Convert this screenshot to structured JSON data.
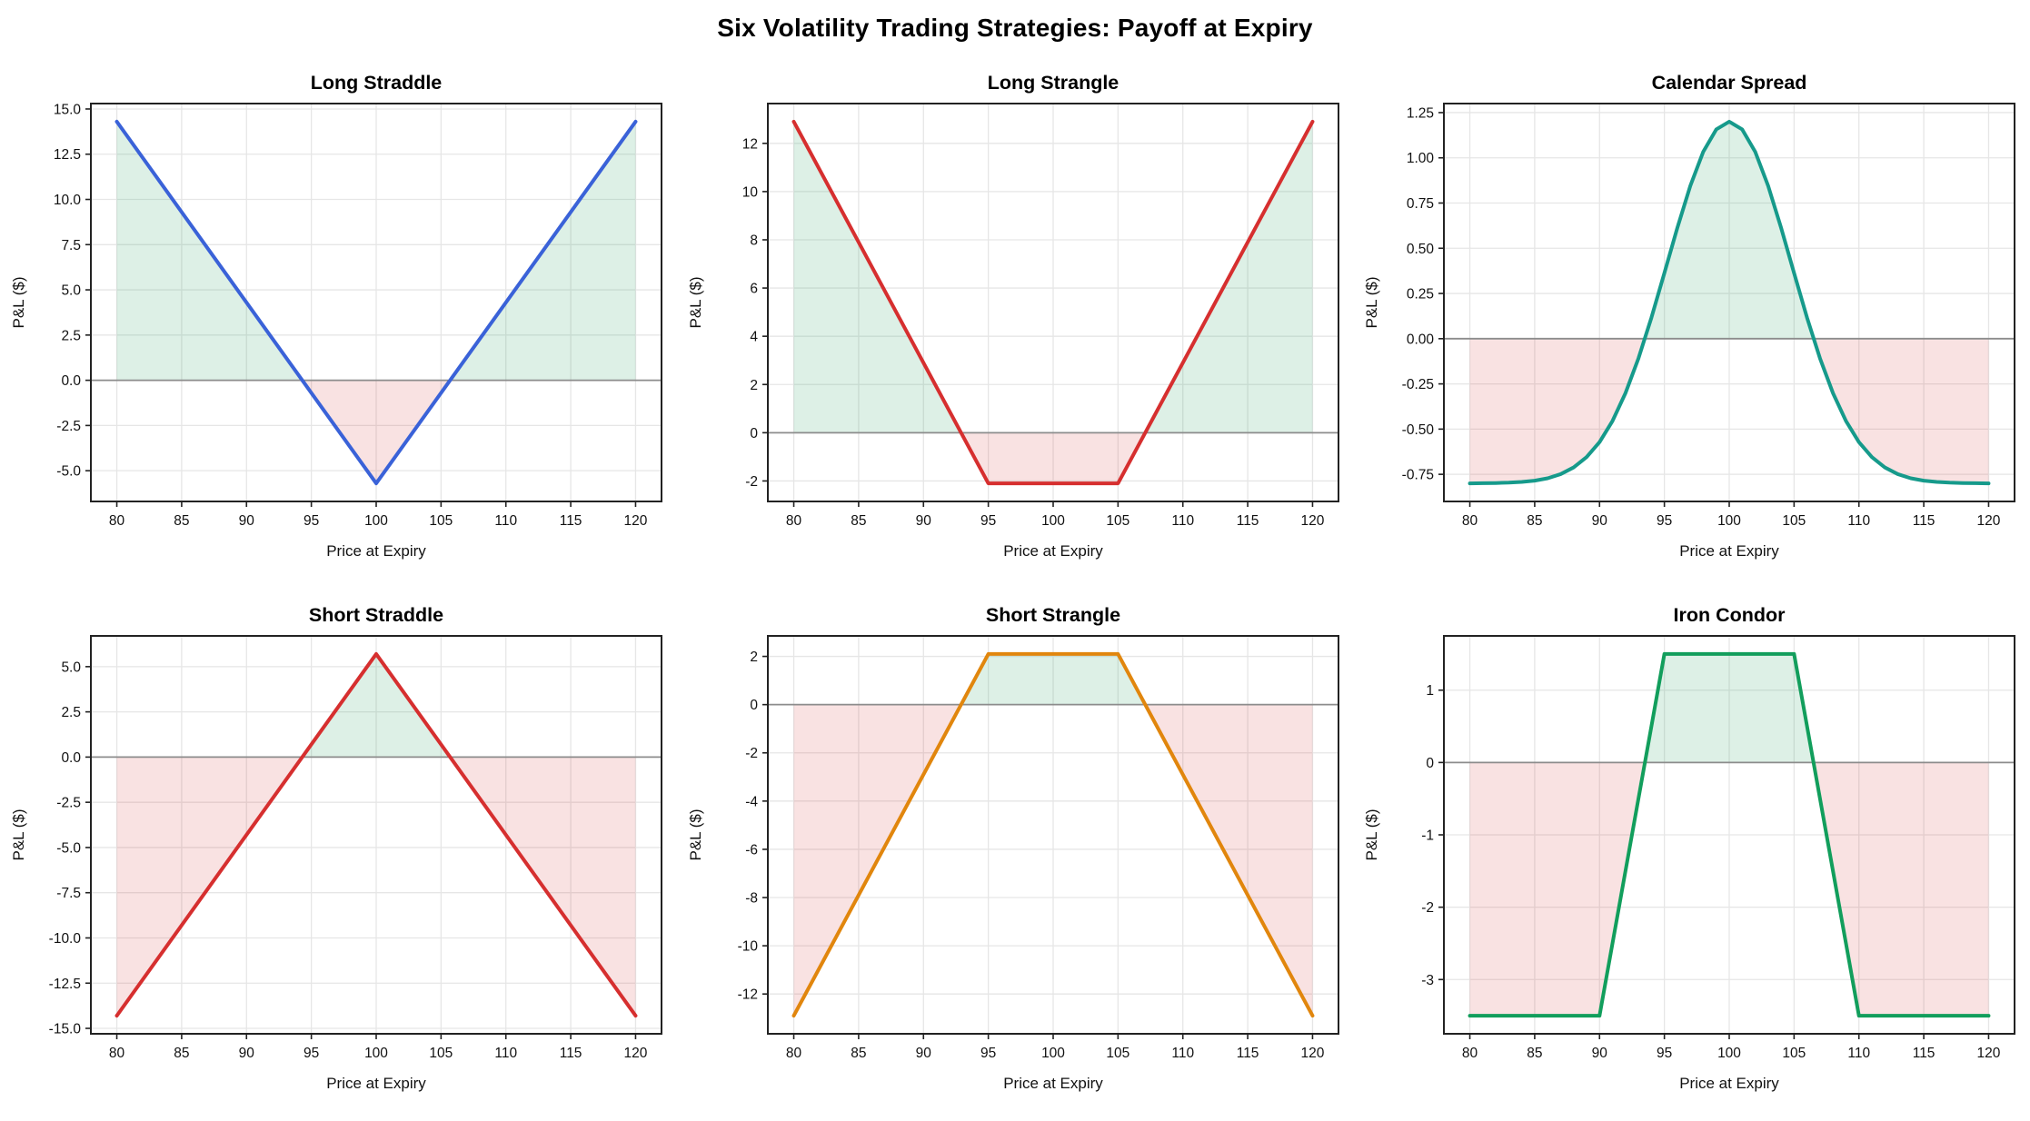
{
  "figure": {
    "title": "Six Volatility Trading Strategies: Payoff at Expiry",
    "background": "#ffffff",
    "profit_fill": "rgba(44,160,101,0.16)",
    "loss_fill": "rgba(214,47,47,0.14)",
    "grid_color": "#e6e6e6",
    "zero_line_color": "#8c8c8c",
    "spine_color": "#222222",
    "tick_color": "#222222"
  },
  "chart_data": [
    {
      "type": "line",
      "title": "Long Straddle",
      "xlabel": "Price at Expiry",
      "ylabel": "P&L ($)",
      "line_color": "#3a62d8",
      "x": [
        80,
        100,
        120
      ],
      "y": [
        14.3,
        -5.7,
        14.3
      ],
      "xlim": [
        78,
        122
      ],
      "ylim": [
        -6.7,
        15.3
      ],
      "xticks": [
        80,
        85,
        90,
        95,
        100,
        105,
        110,
        115,
        120
      ],
      "xtick_labels": [
        "80",
        "85",
        "90",
        "95",
        "100",
        "105",
        "110",
        "115",
        "120"
      ],
      "yticks": [
        -5,
        -2.5,
        0,
        2.5,
        5,
        7.5,
        10,
        12.5,
        15
      ],
      "ytick_labels": [
        "-5.0",
        "-2.5",
        "0.0",
        "2.5",
        "5.0",
        "7.5",
        "10.0",
        "12.5",
        "15.0"
      ],
      "grid": true,
      "legend": "none"
    },
    {
      "type": "line",
      "title": "Long Strangle",
      "xlabel": "Price at Expiry",
      "ylabel": "P&L ($)",
      "line_color": "#d62f2f",
      "x": [
        80,
        95,
        105,
        120
      ],
      "y": [
        12.9,
        -2.1,
        -2.1,
        12.9
      ],
      "xlim": [
        78,
        122
      ],
      "ylim": [
        -2.85,
        13.65
      ],
      "xticks": [
        80,
        85,
        90,
        95,
        100,
        105,
        110,
        115,
        120
      ],
      "xtick_labels": [
        "80",
        "85",
        "90",
        "95",
        "100",
        "105",
        "110",
        "115",
        "120"
      ],
      "yticks": [
        -2,
        0,
        2,
        4,
        6,
        8,
        10,
        12
      ],
      "ytick_labels": [
        "-2",
        "0",
        "2",
        "4",
        "6",
        "8",
        "10",
        "12"
      ],
      "grid": true,
      "legend": "none"
    },
    {
      "type": "line",
      "title": "Calendar Spread",
      "xlabel": "Price at Expiry",
      "ylabel": "P&L ($)",
      "line_color": "#169a8b",
      "x": [
        80,
        81,
        82,
        83,
        84,
        85,
        86,
        87,
        88,
        89,
        90,
        91,
        92,
        93,
        94,
        95,
        96,
        97,
        98,
        99,
        100,
        101,
        102,
        103,
        104,
        105,
        106,
        107,
        108,
        109,
        110,
        111,
        112,
        113,
        114,
        115,
        116,
        117,
        118,
        119,
        120
      ],
      "y": [
        -0.8,
        -0.799,
        -0.798,
        -0.796,
        -0.792,
        -0.785,
        -0.772,
        -0.749,
        -0.712,
        -0.655,
        -0.572,
        -0.455,
        -0.301,
        -0.109,
        0.116,
        0.363,
        0.613,
        0.845,
        1.034,
        1.157,
        1.2,
        1.157,
        1.034,
        0.845,
        0.613,
        0.363,
        0.116,
        -0.109,
        -0.301,
        -0.455,
        -0.572,
        -0.655,
        -0.712,
        -0.749,
        -0.772,
        -0.785,
        -0.792,
        -0.796,
        -0.798,
        -0.799,
        -0.8
      ],
      "xlim": [
        78,
        122
      ],
      "ylim": [
        -0.9,
        1.3
      ],
      "xticks": [
        80,
        85,
        90,
        95,
        100,
        105,
        110,
        115,
        120
      ],
      "xtick_labels": [
        "80",
        "85",
        "90",
        "95",
        "100",
        "105",
        "110",
        "115",
        "120"
      ],
      "yticks": [
        -0.75,
        -0.5,
        -0.25,
        0,
        0.25,
        0.5,
        0.75,
        1,
        1.25
      ],
      "ytick_labels": [
        "-0.75",
        "-0.50",
        "-0.25",
        "0.00",
        "0.25",
        "0.50",
        "0.75",
        "1.00",
        "1.25"
      ],
      "grid": true,
      "legend": "none"
    },
    {
      "type": "line",
      "title": "Short Straddle",
      "xlabel": "Price at Expiry",
      "ylabel": "P&L ($)",
      "line_color": "#d62f2f",
      "x": [
        80,
        100,
        120
      ],
      "y": [
        -14.3,
        5.7,
        -14.3
      ],
      "xlim": [
        78,
        122
      ],
      "ylim": [
        -15.3,
        6.7
      ],
      "xticks": [
        80,
        85,
        90,
        95,
        100,
        105,
        110,
        115,
        120
      ],
      "xtick_labels": [
        "80",
        "85",
        "90",
        "95",
        "100",
        "105",
        "110",
        "115",
        "120"
      ],
      "yticks": [
        -15,
        -12.5,
        -10,
        -7.5,
        -5,
        -2.5,
        0,
        2.5,
        5
      ],
      "ytick_labels": [
        "-15.0",
        "-12.5",
        "-10.0",
        "-7.5",
        "-5.0",
        "-2.5",
        "0.0",
        "2.5",
        "5.0"
      ],
      "grid": true,
      "legend": "none"
    },
    {
      "type": "line",
      "title": "Short Strangle",
      "xlabel": "Price at Expiry",
      "ylabel": "P&L ($)",
      "line_color": "#e1860d",
      "x": [
        80,
        95,
        105,
        120
      ],
      "y": [
        -12.9,
        2.1,
        2.1,
        -12.9
      ],
      "xlim": [
        78,
        122
      ],
      "ylim": [
        -13.65,
        2.85
      ],
      "xticks": [
        80,
        85,
        90,
        95,
        100,
        105,
        110,
        115,
        120
      ],
      "xtick_labels": [
        "80",
        "85",
        "90",
        "95",
        "100",
        "105",
        "110",
        "115",
        "120"
      ],
      "yticks": [
        -12,
        -10,
        -8,
        -6,
        -4,
        -2,
        0,
        2
      ],
      "ytick_labels": [
        "-12",
        "-10",
        "-8",
        "-6",
        "-4",
        "-2",
        "0",
        "2"
      ],
      "grid": true,
      "legend": "none"
    },
    {
      "type": "line",
      "title": "Iron Condor",
      "xlabel": "Price at Expiry",
      "ylabel": "P&L ($)",
      "line_color": "#129e5c",
      "x": [
        80,
        90,
        95,
        105,
        110,
        120
      ],
      "y": [
        -3.5,
        -3.5,
        1.5,
        1.5,
        -3.5,
        -3.5
      ],
      "xlim": [
        78,
        122
      ],
      "ylim": [
        -3.75,
        1.75
      ],
      "xticks": [
        80,
        85,
        90,
        95,
        100,
        105,
        110,
        115,
        120
      ],
      "xtick_labels": [
        "80",
        "85",
        "90",
        "95",
        "100",
        "105",
        "110",
        "115",
        "120"
      ],
      "yticks": [
        -3,
        -2,
        -1,
        0,
        1
      ],
      "ytick_labels": [
        "-3",
        "-2",
        "-1",
        "0",
        "1"
      ],
      "grid": true,
      "legend": "none"
    }
  ]
}
